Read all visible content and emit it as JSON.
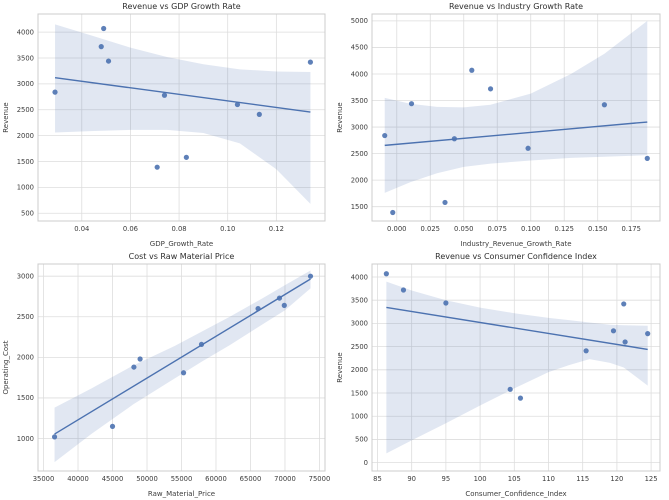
{
  "figure": {
    "background_color": "#ffffff",
    "accent_color": "#4c72b0",
    "line_color": "#4c72b0",
    "point_color": "#4c72b0",
    "band_color": "#4c72b0",
    "band_opacity": 0.17,
    "grid_color": "#dddddd",
    "border_color": "#cccccc",
    "title_color": "#2e2e2e",
    "tick_color": "#3d3d3d",
    "axis_label_color": "#3d3d3d"
  },
  "chart_data": [
    {
      "type": "scatter",
      "title": "Revenue vs GDP Growth Rate",
      "xlabel": "GDP_Growth_Rate",
      "ylabel": "Revenue",
      "xlim": [
        0.022,
        0.14
      ],
      "ylim": [
        350,
        4350
      ],
      "grid": true,
      "legend": null,
      "xticks": [
        0.04,
        0.06,
        0.08,
        0.1,
        0.12
      ],
      "xtick_labels": [
        "0.04",
        "0.06",
        "0.08",
        "0.10",
        "0.12"
      ],
      "yticks": [
        500,
        1000,
        1500,
        2000,
        2500,
        3000,
        3500,
        4000
      ],
      "ytick_labels": [
        "500",
        "1000",
        "1500",
        "2000",
        "2500",
        "3000",
        "3500",
        "4000"
      ],
      "points": [
        [
          0.029,
          2840
        ],
        [
          0.048,
          3720
        ],
        [
          0.049,
          4070
        ],
        [
          0.051,
          3440
        ],
        [
          0.071,
          1390
        ],
        [
          0.074,
          2780
        ],
        [
          0.083,
          1580
        ],
        [
          0.104,
          2600
        ],
        [
          0.113,
          2410
        ],
        [
          0.134,
          3420
        ]
      ],
      "regression_line": [
        [
          0.029,
          3120
        ],
        [
          0.134,
          2455
        ]
      ],
      "confidence_band": {
        "x": [
          0.029,
          0.045,
          0.06,
          0.075,
          0.09,
          0.105,
          0.12,
          0.134
        ],
        "upper": [
          4150,
          3920,
          3700,
          3520,
          3380,
          3280,
          3240,
          3230
        ],
        "lower": [
          2060,
          2090,
          2110,
          2110,
          2050,
          1850,
          1350,
          680
        ]
      }
    },
    {
      "type": "scatter",
      "title": "Revenue vs Industry Growth Rate",
      "xlabel": "Industry_Revenue_Growth_Rate",
      "ylabel": "Revenue",
      "xlim": [
        -0.0185,
        0.1965
      ],
      "ylim": [
        1230,
        5130
      ],
      "grid": true,
      "legend": null,
      "xticks": [
        0.0,
        0.025,
        0.05,
        0.075,
        0.1,
        0.125,
        0.15,
        0.175
      ],
      "xtick_labels": [
        "0.000",
        "0.025",
        "0.050",
        "0.075",
        "0.100",
        "0.125",
        "0.150",
        "0.175"
      ],
      "yticks": [
        1500,
        2000,
        2500,
        3000,
        3500,
        4000,
        4500,
        5000
      ],
      "ytick_labels": [
        "1500",
        "2000",
        "2500",
        "3000",
        "3500",
        "4000",
        "4500",
        "5000"
      ],
      "points": [
        [
          -0.009,
          2840
        ],
        [
          -0.003,
          1390
        ],
        [
          0.011,
          3440
        ],
        [
          0.036,
          1580
        ],
        [
          0.043,
          2780
        ],
        [
          0.056,
          4070
        ],
        [
          0.07,
          3720
        ],
        [
          0.098,
          2600
        ],
        [
          0.155,
          3420
        ],
        [
          0.187,
          2410
        ]
      ],
      "regression_line": [
        [
          -0.009,
          2655
        ],
        [
          0.187,
          3095
        ]
      ],
      "confidence_band": {
        "x": [
          -0.009,
          0.01,
          0.03,
          0.05,
          0.07,
          0.1,
          0.13,
          0.155,
          0.187
        ],
        "upper": [
          3550,
          3440,
          3380,
          3370,
          3420,
          3630,
          4000,
          4380,
          5000
        ],
        "lower": [
          1760,
          1960,
          2130,
          2250,
          2310,
          2370,
          2420,
          2440,
          2470
        ]
      }
    },
    {
      "type": "scatter",
      "title": "Cost vs Raw Material Price",
      "xlabel": "Raw_Material_Price",
      "ylabel": "Operating_Cost",
      "xlim": [
        34200,
        75800
      ],
      "ylim": [
        600,
        3150
      ],
      "grid": true,
      "legend": null,
      "xticks": [
        35000,
        40000,
        45000,
        50000,
        55000,
        60000,
        65000,
        70000,
        75000
      ],
      "xtick_labels": [
        "35000",
        "40000",
        "45000",
        "50000",
        "55000",
        "60000",
        "65000",
        "70000",
        "75000"
      ],
      "yticks": [
        1000,
        1500,
        2000,
        2500,
        3000
      ],
      "ytick_labels": [
        "1000",
        "1500",
        "2000",
        "2500",
        "3000"
      ],
      "points": [
        [
          36600,
          1020
        ],
        [
          45000,
          1150
        ],
        [
          48100,
          1880
        ],
        [
          49000,
          1980
        ],
        [
          55300,
          1810
        ],
        [
          57900,
          2160
        ],
        [
          66100,
          2600
        ],
        [
          69200,
          2730
        ],
        [
          69900,
          2640
        ],
        [
          73700,
          3000
        ]
      ],
      "regression_line": [
        [
          36600,
          1055
        ],
        [
          73700,
          2965
        ]
      ],
      "confidence_band": {
        "x": [
          36600,
          42000,
          48000,
          54000,
          58000,
          62000,
          67000,
          70000,
          73700
        ],
        "upper": [
          1380,
          1620,
          1900,
          2140,
          2320,
          2500,
          2740,
          2890,
          3070
        ],
        "lower": [
          710,
          1060,
          1420,
          1740,
          1950,
          2150,
          2420,
          2580,
          2850
        ]
      }
    },
    {
      "type": "scatter",
      "title": "Revenue vs Consumer Confidence Index",
      "xlabel": "Consumer_Confidence_Index",
      "ylabel": "Revenue",
      "xlim": [
        84.2,
        126.3
      ],
      "ylim": [
        -180,
        4280
      ],
      "grid": true,
      "legend": null,
      "xticks": [
        85,
        90,
        95,
        100,
        105,
        110,
        115,
        120,
        125
      ],
      "xtick_labels": [
        "85",
        "90",
        "95",
        "100",
        "105",
        "110",
        "115",
        "120",
        "125"
      ],
      "yticks": [
        0,
        500,
        1000,
        1500,
        2000,
        2500,
        3000,
        3500,
        4000
      ],
      "ytick_labels": [
        "0",
        "500",
        "1000",
        "1500",
        "2000",
        "2500",
        "3000",
        "3500",
        "4000"
      ],
      "points": [
        [
          86.3,
          4070
        ],
        [
          88.8,
          3720
        ],
        [
          95.0,
          3440
        ],
        [
          104.4,
          1580
        ],
        [
          105.9,
          1390
        ],
        [
          115.5,
          2410
        ],
        [
          119.5,
          2840
        ],
        [
          121.0,
          3420
        ],
        [
          121.2,
          2600
        ],
        [
          124.5,
          2780
        ]
      ],
      "regression_line": [
        [
          86.3,
          3345
        ],
        [
          124.5,
          2440
        ]
      ],
      "confidence_band": {
        "x": [
          86.3,
          90,
          95,
          100,
          105,
          110,
          113,
          116,
          119,
          121,
          124.5
        ],
        "upper": [
          3900,
          3710,
          3500,
          3340,
          3220,
          3120,
          3070,
          3020,
          2970,
          2960,
          2950
        ],
        "lower": [
          200,
          480,
          850,
          1230,
          1600,
          1950,
          2100,
          2230,
          2150,
          2050,
          1660
        ]
      }
    }
  ]
}
